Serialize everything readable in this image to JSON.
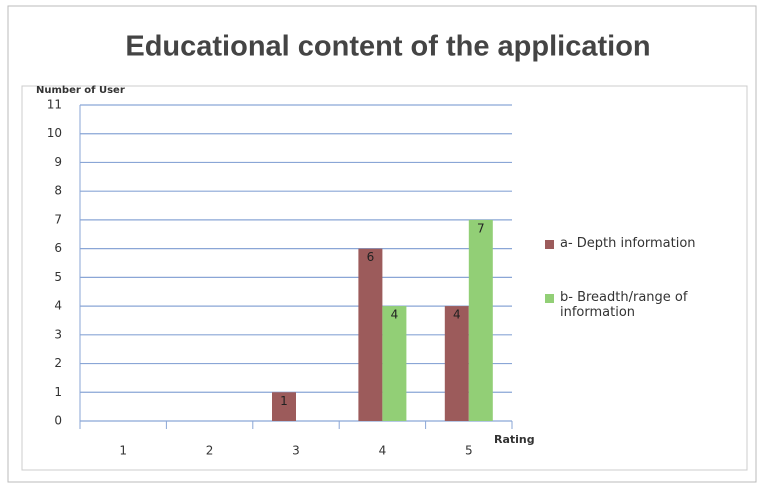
{
  "chart_data": {
    "type": "bar",
    "title": "Educational content of the application",
    "y_label": "Number of User",
    "x_label": "Rating",
    "categories": [
      "1",
      "2",
      "3",
      "4",
      "5"
    ],
    "series": [
      {
        "name": "a- Depth information",
        "color": "#9c5b5b",
        "values": [
          0,
          0,
          1,
          6,
          4
        ]
      },
      {
        "name": "b- Breadth/range of information",
        "color": "#92cf76",
        "values": [
          0,
          0,
          0,
          4,
          7
        ]
      }
    ],
    "ylim": [
      0,
      11
    ],
    "yticks": [
      0,
      1,
      2,
      3,
      4,
      5,
      6,
      7,
      8,
      9,
      10,
      11
    ],
    "grid": true,
    "legend": "right"
  }
}
